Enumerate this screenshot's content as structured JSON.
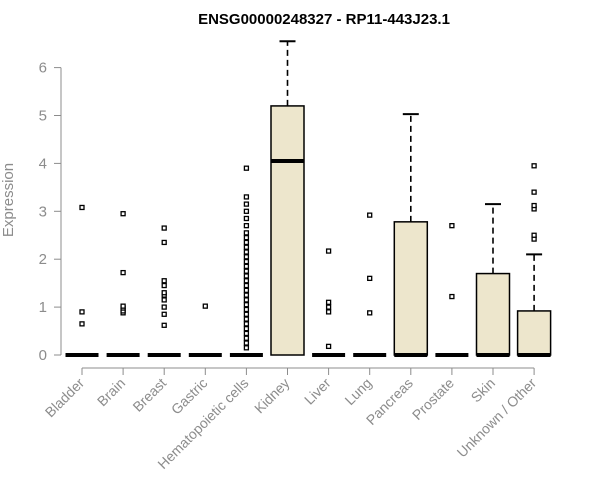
{
  "chart_data": {
    "type": "boxplot",
    "title": "ENSG00000248327 - RP11-443J23.1",
    "xlabel": "",
    "ylabel": "Expression",
    "ylim": [
      0,
      6.6
    ],
    "yticks": [
      0,
      1,
      2,
      3,
      4,
      5,
      6
    ],
    "grid": false,
    "box_color": "#ede6cc",
    "categories": [
      "Bladder",
      "Brain",
      "Breast",
      "Gastric",
      "Hematopoietic cells",
      "Kidney",
      "Liver",
      "Lung",
      "Pancreas",
      "Prostate",
      "Skin",
      "Unknown / Other"
    ],
    "boxes": [
      {
        "category": "Bladder",
        "q1": 0,
        "median": 0,
        "q3": 0,
        "whisker_low": 0,
        "whisker_high": 0,
        "outliers": [
          0.65,
          0.9,
          3.08
        ]
      },
      {
        "category": "Brain",
        "q1": 0,
        "median": 0,
        "q3": 0,
        "whisker_low": 0,
        "whisker_high": 0,
        "outliers": [
          0.88,
          0.92,
          0.98,
          1.02,
          1.72,
          2.95
        ]
      },
      {
        "category": "Breast",
        "q1": 0,
        "median": 0,
        "q3": 0,
        "whisker_low": 0,
        "whisker_high": 0,
        "outliers": [
          0.62,
          0.85,
          1.0,
          1.15,
          1.25,
          1.3,
          1.45,
          1.55,
          2.35,
          2.65
        ]
      },
      {
        "category": "Gastric",
        "q1": 0,
        "median": 0,
        "q3": 0,
        "whisker_low": 0,
        "whisker_high": 0,
        "outliers": [
          1.02
        ]
      },
      {
        "category": "Hematopoietic cells",
        "q1": 0,
        "median": 0,
        "q3": 0,
        "whisker_low": 0,
        "whisker_high": 0,
        "outliers": [
          0.15,
          0.25,
          0.35,
          0.45,
          0.55,
          0.65,
          0.75,
          0.85,
          0.95,
          1.05,
          1.15,
          1.25,
          1.35,
          1.45,
          1.55,
          1.65,
          1.75,
          1.85,
          1.95,
          2.05,
          2.15,
          2.25,
          2.35,
          2.45,
          2.55,
          2.7,
          2.85,
          3.0,
          3.15,
          3.3,
          3.9
        ]
      },
      {
        "category": "Kidney",
        "q1": 0,
        "median": 4.05,
        "q3": 5.2,
        "whisker_low": 0,
        "whisker_high": 6.55,
        "outliers": []
      },
      {
        "category": "Liver",
        "q1": 0,
        "median": 0,
        "q3": 0,
        "whisker_low": 0,
        "whisker_high": 0,
        "outliers": [
          0.18,
          0.9,
          1.0,
          1.1,
          2.17
        ]
      },
      {
        "category": "Lung",
        "q1": 0,
        "median": 0,
        "q3": 0,
        "whisker_low": 0,
        "whisker_high": 0,
        "outliers": [
          0.88,
          1.6,
          2.92
        ]
      },
      {
        "category": "Pancreas",
        "q1": 0,
        "median": 0,
        "q3": 2.78,
        "whisker_low": 0,
        "whisker_high": 5.03,
        "outliers": []
      },
      {
        "category": "Prostate",
        "q1": 0,
        "median": 0,
        "q3": 0,
        "whisker_low": 0,
        "whisker_high": 0,
        "outliers": [
          1.22,
          2.7
        ]
      },
      {
        "category": "Skin",
        "q1": 0,
        "median": 0,
        "q3": 1.7,
        "whisker_low": 0,
        "whisker_high": 3.15,
        "outliers": []
      },
      {
        "category": "Unknown / Other",
        "q1": 0,
        "median": 0,
        "q3": 0.92,
        "whisker_low": 0,
        "whisker_high": 2.1,
        "outliers": [
          2.42,
          2.5,
          3.05,
          3.12,
          3.4,
          3.95
        ]
      }
    ]
  }
}
